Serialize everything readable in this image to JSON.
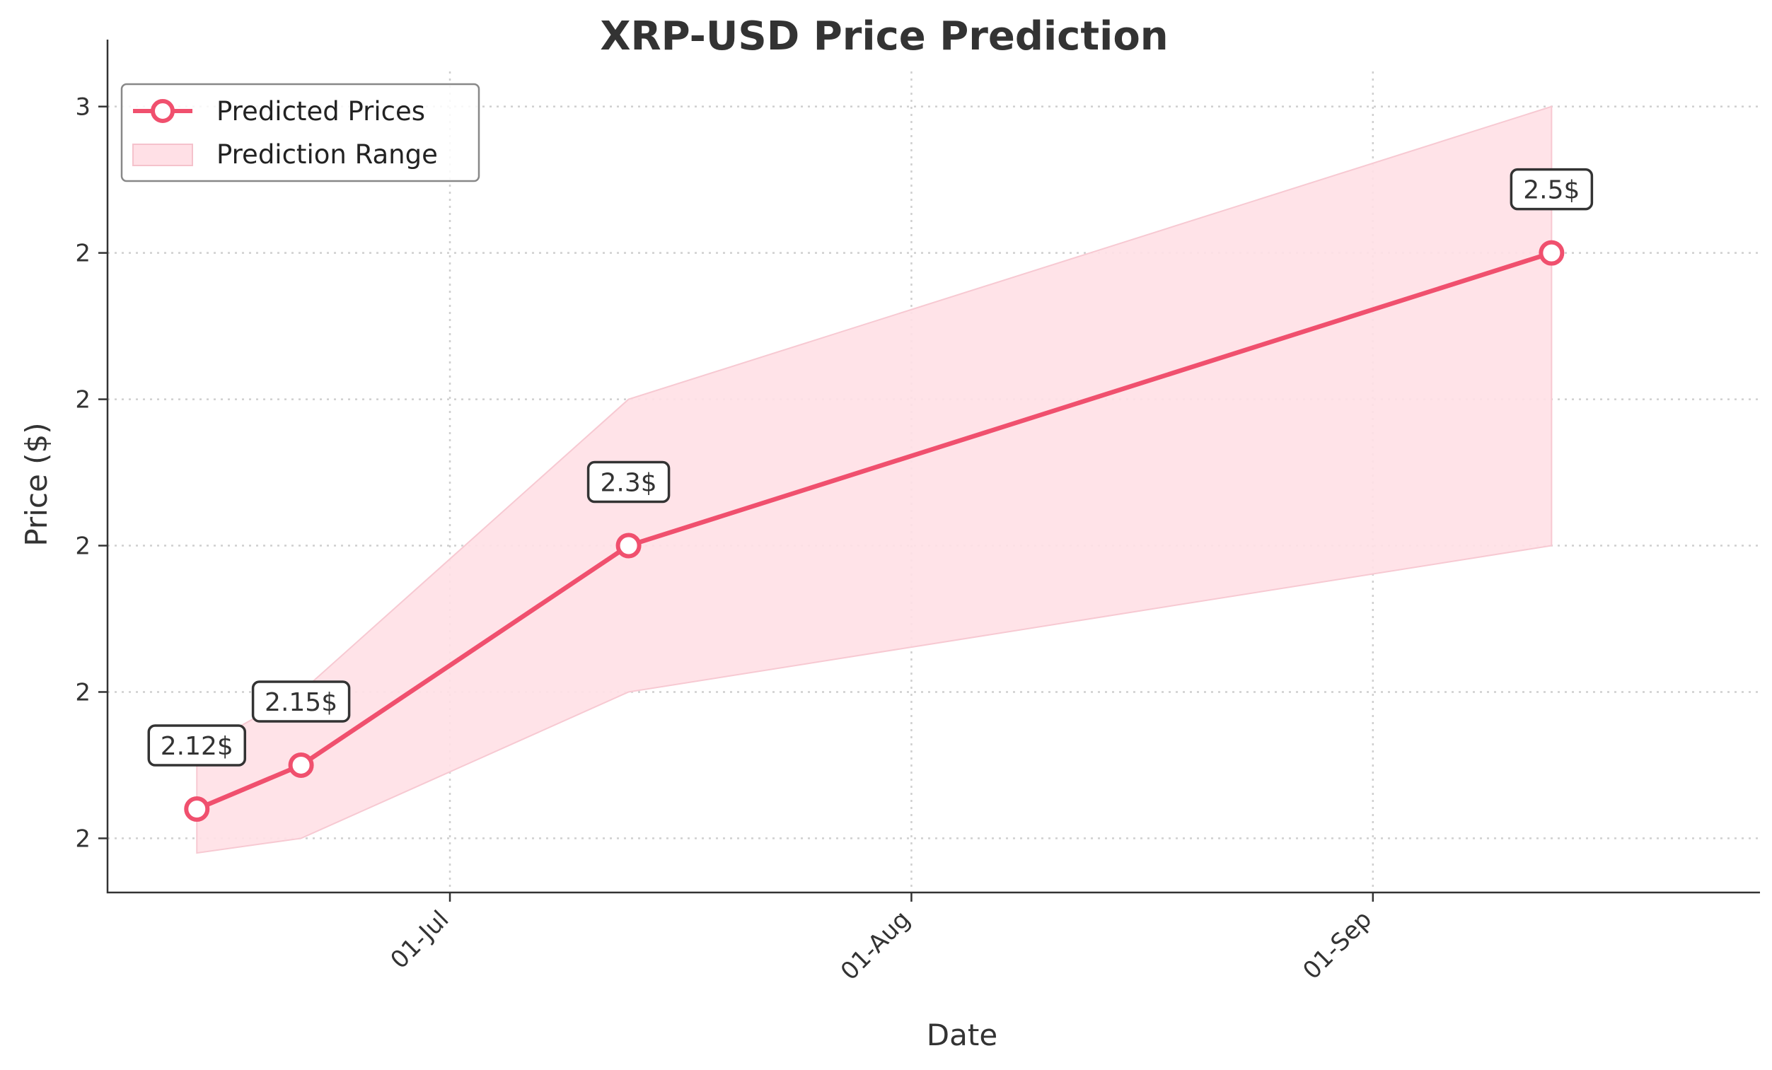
{
  "chart_data": {
    "type": "line",
    "title": "XRP-USD Price Prediction",
    "xlabel": "Date",
    "ylabel": "Price ($)",
    "x_tick_labels": [
      {
        "date": "2025-07-01",
        "label": "01-Jul"
      },
      {
        "date": "2025-08-01",
        "label": "01-Aug"
      },
      {
        "date": "2025-09-01",
        "label": "01-Sep"
      }
    ],
    "y_tick_values": [
      2.1,
      2.2,
      2.3,
      2.4,
      2.5,
      2.6
    ],
    "y_tick_labels": [
      "2",
      "2",
      "2",
      "2",
      "2",
      "3"
    ],
    "ylim": [
      2.063,
      2.624
    ],
    "xlim": [
      "2025-06-08",
      "2025-09-27"
    ],
    "grid": true,
    "legend_position": "top-left",
    "series": [
      {
        "name": "Predicted Prices",
        "kind": "line-markers",
        "color": "#f0506e",
        "x": [
          "2025-06-14",
          "2025-06-21",
          "2025-07-13",
          "2025-09-13"
        ],
        "y": [
          2.12,
          2.15,
          2.3,
          2.5
        ],
        "labels": [
          "2.12$",
          "2.15$",
          "2.3$",
          "2.5$"
        ]
      },
      {
        "name": "Prediction Range",
        "kind": "band",
        "color": "#ffe0e6",
        "x": [
          "2025-06-14",
          "2025-06-21",
          "2025-07-13",
          "2025-09-13"
        ],
        "upper": [
          2.16,
          2.2,
          2.4,
          2.6
        ],
        "lower": [
          2.09,
          2.1,
          2.2,
          2.3
        ]
      }
    ]
  }
}
